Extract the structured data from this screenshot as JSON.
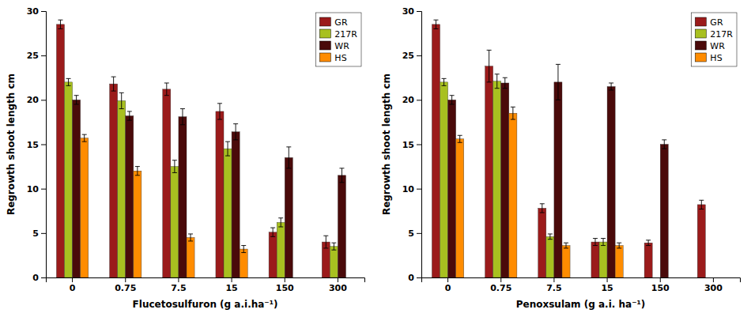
{
  "chart_data": [
    {
      "type": "bar",
      "xlabel": "Flucetosulfuron (g a.i.ha⁻¹)",
      "ylabel": "Regrowth shoot length cm",
      "categories": [
        "0",
        "0.75",
        "7.5",
        "15",
        "150",
        "300"
      ],
      "series": [
        {
          "name": "GR",
          "color": "#9B1B1B",
          "values": [
            28.5,
            21.8,
            21.2,
            18.7,
            5.1,
            4.0
          ],
          "errors": [
            0.5,
            0.8,
            0.7,
            0.9,
            0.5,
            0.7
          ]
        },
        {
          "name": "217R",
          "color": "#A8C020",
          "values": [
            22.0,
            19.9,
            12.5,
            14.5,
            6.2,
            3.5
          ],
          "errors": [
            0.4,
            0.9,
            0.7,
            0.8,
            0.5,
            0.4
          ]
        },
        {
          "name": "WR",
          "color": "#4A0A0A",
          "values": [
            20.0,
            18.2,
            18.1,
            16.4,
            13.5,
            11.5
          ],
          "errors": [
            0.5,
            0.5,
            0.9,
            0.9,
            1.2,
            0.8
          ]
        },
        {
          "name": "HS",
          "color": "#FF8C00",
          "values": [
            15.7,
            12.0,
            4.5,
            3.2,
            0.0,
            0.0
          ],
          "errors": [
            0.4,
            0.5,
            0.4,
            0.4,
            0.0,
            0.0
          ]
        }
      ],
      "ylim": [
        0,
        30
      ],
      "yticks": [
        0,
        5,
        10,
        15,
        20,
        25,
        30
      ],
      "grid": false,
      "legend": "upper right"
    },
    {
      "type": "bar",
      "xlabel": "Penoxsulam (g a.i. ha⁻¹)",
      "ylabel": "Regrowth shoot length cm",
      "categories": [
        "0",
        "0.75",
        "7.5",
        "15",
        "150",
        "300"
      ],
      "series": [
        {
          "name": "GR",
          "color": "#9B1B1B",
          "values": [
            28.5,
            23.8,
            7.8,
            4.0,
            3.9,
            8.2
          ],
          "errors": [
            0.5,
            1.8,
            0.5,
            0.4,
            0.3,
            0.5
          ]
        },
        {
          "name": "217R",
          "color": "#A8C020",
          "values": [
            22.0,
            22.1,
            4.6,
            4.0,
            0.0,
            0.0
          ],
          "errors": [
            0.4,
            0.8,
            0.3,
            0.4,
            0.0,
            0.0
          ]
        },
        {
          "name": "WR",
          "color": "#4A0A0A",
          "values": [
            20.0,
            21.9,
            22.0,
            21.5,
            15.0,
            0.0
          ],
          "errors": [
            0.5,
            0.6,
            2.0,
            0.4,
            0.5,
            0.0
          ]
        },
        {
          "name": "HS",
          "color": "#FF8C00",
          "values": [
            15.6,
            18.5,
            3.6,
            3.6,
            0.0,
            0.0
          ],
          "errors": [
            0.4,
            0.7,
            0.3,
            0.3,
            0.0,
            0.0
          ]
        }
      ],
      "ylim": [
        0,
        30
      ],
      "yticks": [
        0,
        5,
        10,
        15,
        20,
        25,
        30
      ],
      "grid": false,
      "legend": "upper right"
    }
  ]
}
